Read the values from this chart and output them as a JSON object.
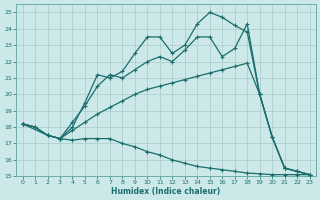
{
  "xlabel": "Humidex (Indice chaleur)",
  "background_color": "#cce8e8",
  "grid_color": "#aacccc",
  "line_color": "#1a6e6e",
  "xlim": [
    -0.5,
    23.5
  ],
  "ylim": [
    15,
    25.5
  ],
  "yticks": [
    15,
    16,
    17,
    18,
    19,
    20,
    21,
    22,
    23,
    24,
    25
  ],
  "xticks": [
    0,
    1,
    2,
    3,
    4,
    5,
    6,
    7,
    8,
    9,
    10,
    11,
    12,
    13,
    14,
    15,
    16,
    17,
    18,
    19,
    20,
    21,
    22,
    23
  ],
  "line1_x": [
    0,
    1,
    2,
    3,
    4,
    5,
    6,
    7,
    8,
    9,
    10,
    11,
    12,
    13,
    14,
    15,
    16,
    17,
    18,
    19,
    20,
    21,
    22,
    23
  ],
  "line1_y": [
    18.2,
    18.0,
    17.5,
    17.3,
    17.2,
    17.3,
    17.3,
    17.3,
    17.0,
    16.8,
    16.5,
    16.3,
    16.0,
    15.8,
    15.6,
    15.5,
    15.4,
    15.3,
    15.2,
    15.15,
    15.1,
    15.1,
    15.1,
    15.1
  ],
  "line2_x": [
    0,
    1,
    2,
    3,
    4,
    5,
    6,
    7,
    8,
    9,
    10,
    11,
    12,
    13,
    14,
    15,
    16,
    17,
    18,
    19,
    20,
    21,
    22,
    23
  ],
  "line2_y": [
    18.2,
    18.0,
    17.5,
    17.3,
    17.8,
    18.3,
    18.8,
    19.2,
    19.6,
    20.0,
    20.3,
    20.5,
    20.7,
    20.9,
    21.1,
    21.3,
    21.5,
    21.7,
    21.9,
    20.0,
    17.4,
    15.5,
    15.3,
    15.1
  ],
  "line3_x": [
    0,
    2,
    3,
    4,
    5,
    6,
    7,
    8,
    9,
    10,
    11,
    12,
    13,
    14,
    15,
    16,
    17,
    18,
    19,
    20,
    21,
    22,
    23
  ],
  "line3_y": [
    18.2,
    17.5,
    17.3,
    18.3,
    19.3,
    20.5,
    21.2,
    21.0,
    21.5,
    22.0,
    22.3,
    22.0,
    22.7,
    23.5,
    23.5,
    22.3,
    22.8,
    24.3,
    20.0,
    17.4,
    15.5,
    15.3,
    15.1
  ],
  "line4_x": [
    0,
    1,
    2,
    3,
    4,
    5,
    6,
    7,
    8,
    9,
    10,
    11,
    12,
    13,
    14,
    15,
    16,
    17,
    18,
    19,
    20,
    21,
    22,
    23
  ],
  "line4_y": [
    18.2,
    18.0,
    17.5,
    17.3,
    18.0,
    19.5,
    21.2,
    21.0,
    21.4,
    22.5,
    23.5,
    23.5,
    22.5,
    23.0,
    24.3,
    25.0,
    24.7,
    24.2,
    23.8,
    20.0,
    17.4,
    15.5,
    15.3,
    15.1
  ]
}
